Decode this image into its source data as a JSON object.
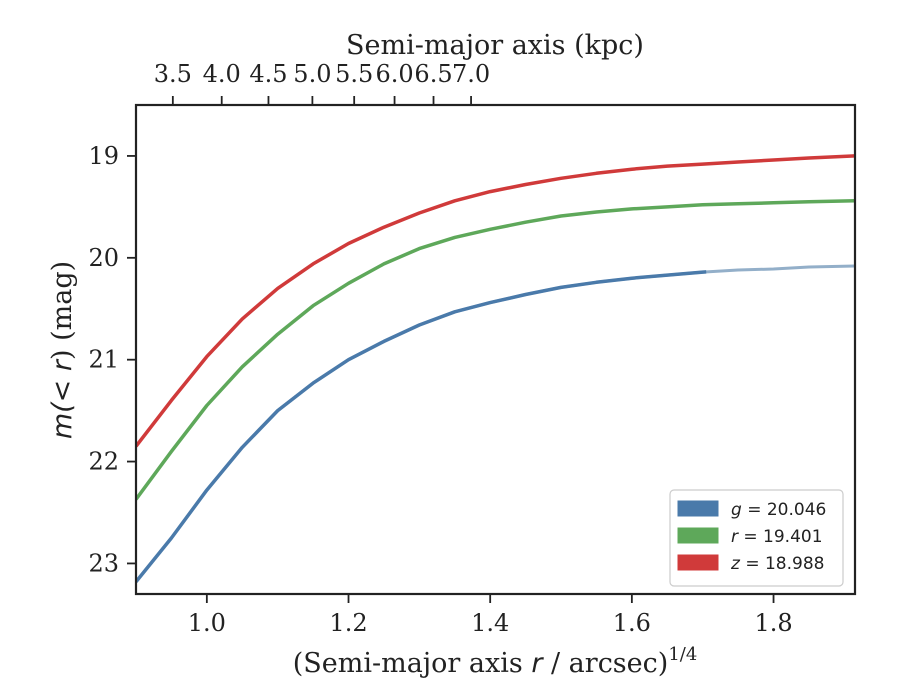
{
  "chart_data": {
    "type": "line",
    "xlabel": "(Semi-major axis r / arcsec)^1/4",
    "xlabel_parts": {
      "pre": "(Semi-major axis ",
      "var": "r",
      "post": " / arcsec)",
      "sup": "1/4"
    },
    "ylabel": "m(<r) (mag)",
    "ylabel_parts": {
      "pre": "m(",
      "var": "< r",
      "post": ") (mag)"
    },
    "top_xlabel": "Semi-major axis (kpc)",
    "xlim": [
      0.9,
      1.915
    ],
    "ylim": [
      23.3,
      18.5
    ],
    "y_inverted": true,
    "xticks": [
      1.0,
      1.2,
      1.4,
      1.6,
      1.8
    ],
    "xtick_labels": [
      "1.0",
      "1.2",
      "1.4",
      "1.6",
      "1.8"
    ],
    "yticks": [
      19,
      20,
      21,
      22,
      23
    ],
    "ytick_labels": [
      "19",
      "20",
      "21",
      "22",
      "23"
    ],
    "top_ticks_x": [
      0.952,
      1.021,
      1.087,
      1.149,
      1.208,
      1.265,
      1.32,
      1.373
    ],
    "top_tick_labels": [
      "3.5",
      "4.0",
      "4.5",
      "5.0",
      "5.5",
      "6.0",
      "6.5",
      "7.0"
    ],
    "grid": false,
    "legend_position": "bottom-right",
    "series": [
      {
        "name": "g = 20.046",
        "legend_var": "g",
        "legend_value": "= 20.046",
        "color": "#4a7aaa",
        "faded_color": "#93afc9",
        "solid_until_x": 1.705,
        "x": [
          0.9,
          0.95,
          1.0,
          1.05,
          1.1,
          1.15,
          1.2,
          1.25,
          1.3,
          1.35,
          1.4,
          1.45,
          1.5,
          1.55,
          1.6,
          1.65,
          1.7,
          1.75,
          1.8,
          1.85,
          1.915
        ],
        "y": [
          23.18,
          22.75,
          22.28,
          21.86,
          21.5,
          21.23,
          21.0,
          20.82,
          20.66,
          20.53,
          20.44,
          20.36,
          20.29,
          20.24,
          20.2,
          20.17,
          20.14,
          20.12,
          20.11,
          20.09,
          20.08
        ]
      },
      {
        "name": "r = 19.401",
        "legend_var": "r",
        "legend_value": "= 19.401",
        "color": "#5ea85a",
        "x": [
          0.9,
          0.95,
          1.0,
          1.05,
          1.1,
          1.15,
          1.2,
          1.25,
          1.3,
          1.35,
          1.4,
          1.45,
          1.5,
          1.55,
          1.6,
          1.65,
          1.7,
          1.75,
          1.8,
          1.85,
          1.915
        ],
        "y": [
          22.37,
          21.9,
          21.45,
          21.07,
          20.75,
          20.47,
          20.25,
          20.06,
          19.91,
          19.8,
          19.72,
          19.65,
          19.59,
          19.55,
          19.52,
          19.5,
          19.48,
          19.47,
          19.46,
          19.45,
          19.44
        ]
      },
      {
        "name": "z = 18.988",
        "legend_var": "z",
        "legend_value": "= 18.988",
        "color": "#d03a3a",
        "x": [
          0.9,
          0.95,
          1.0,
          1.05,
          1.1,
          1.15,
          1.2,
          1.25,
          1.3,
          1.35,
          1.4,
          1.45,
          1.5,
          1.55,
          1.6,
          1.65,
          1.7,
          1.75,
          1.8,
          1.85,
          1.915
        ],
        "y": [
          21.85,
          21.4,
          20.97,
          20.6,
          20.3,
          20.06,
          19.86,
          19.7,
          19.56,
          19.44,
          19.35,
          19.28,
          19.22,
          19.17,
          19.13,
          19.1,
          19.08,
          19.06,
          19.04,
          19.02,
          19.0
        ]
      }
    ]
  }
}
